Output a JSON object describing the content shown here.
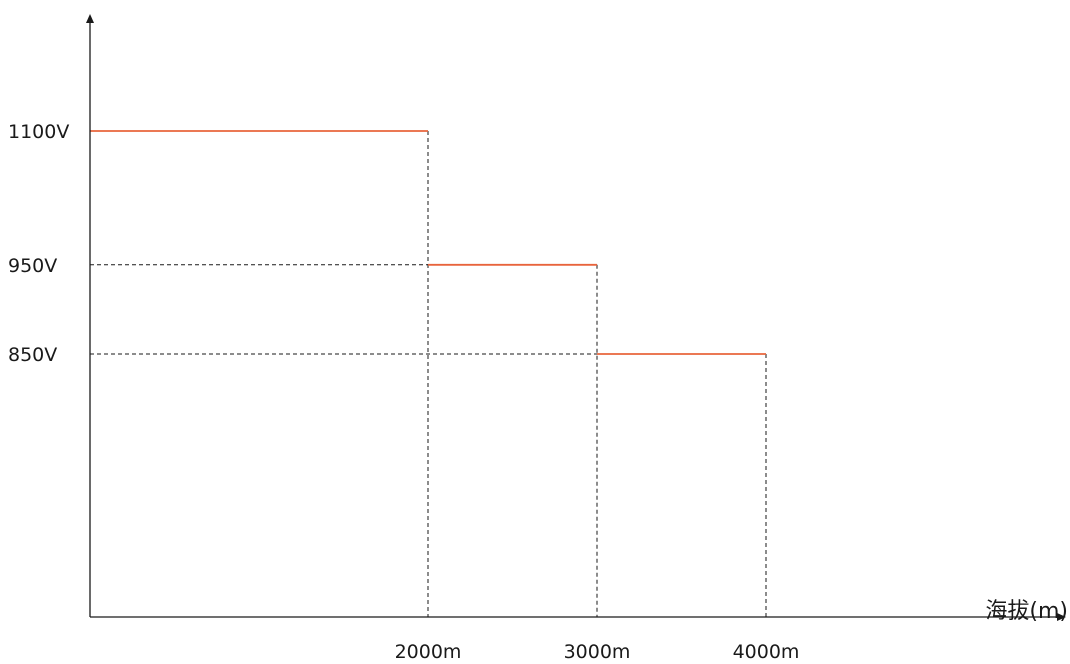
{
  "chart_data": {
    "type": "line",
    "title": "",
    "xlabel": "海拔(m)",
    "ylabel": "",
    "x_ticks": [
      {
        "value": 2000,
        "label": "2000m"
      },
      {
        "value": 3000,
        "label": "3000m"
      },
      {
        "value": 4000,
        "label": "4000m"
      }
    ],
    "y_ticks": [
      {
        "value": 1100,
        "label": "1100V"
      },
      {
        "value": 950,
        "label": "950V"
      },
      {
        "value": 850,
        "label": "850V"
      }
    ],
    "series": [
      {
        "type": "step",
        "segments": [
          {
            "x_start": 0,
            "x_end": 2000,
            "y": 1100
          },
          {
            "x_start": 2000,
            "x_end": 3000,
            "y": 950
          },
          {
            "x_start": 3000,
            "x_end": 4000,
            "y": 850
          }
        ]
      }
    ],
    "grid": false,
    "colors": {
      "line": "#e8643c",
      "axis": "#1a1a1a",
      "guide": "#1a1a1a"
    }
  }
}
